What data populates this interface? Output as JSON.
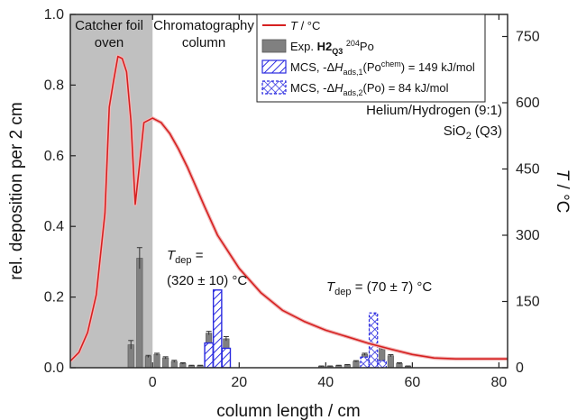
{
  "chart_data": {
    "type": "bar",
    "xlabel": "column length / cm",
    "ylabel_left": "rel. deposition per 2 cm",
    "ylabel_right_symbol": "T",
    "ylabel_right_unit": " / °C",
    "xlim": [
      -19,
      82
    ],
    "ylim": [
      0,
      1.0
    ],
    "ylim_right": [
      0,
      800
    ],
    "x_ticks": [
      0,
      20,
      40,
      60,
      80
    ],
    "y_ticks": [
      0.0,
      0.2,
      0.4,
      0.6,
      0.8,
      1.0
    ],
    "y_right_ticks": [
      0,
      150,
      300,
      450,
      600,
      750
    ],
    "regions": [
      {
        "label_line1": "Catcher foil",
        "label_line2": "oven",
        "x_start": -19,
        "x_end": 0,
        "color": "#c0c0c0"
      },
      {
        "label_line1": "Chromatography",
        "label_line2": "column"
      }
    ],
    "conditions_line1": "Helium/Hydrogen (9:1)",
    "conditions_line2_main": "SiO",
    "conditions_line2_sub": "2",
    "conditions_line2_rest": " (Q3)",
    "colors": {
      "temperature": "#d62020",
      "experiment": "#808080",
      "mcs": "#2a2ae0"
    },
    "legend": {
      "placement": "top-right",
      "entries": [
        {
          "symbol": "line",
          "parts": [
            {
              "t": "T",
              "style": "italic"
            },
            {
              "t": " / °C"
            }
          ]
        },
        {
          "symbol": "grey-bar",
          "parts": [
            {
              "t": "Exp. "
            },
            {
              "t": "H2",
              "style": "bold"
            },
            {
              "t": "Q3",
              "style": "bold-sub"
            },
            {
              "t": " "
            },
            {
              "t": "204",
              "style": "sup"
            },
            {
              "t": "Po"
            }
          ]
        },
        {
          "symbol": "hatch",
          "parts": [
            {
              "t": "MCS, -Δ"
            },
            {
              "t": "H",
              "style": "italic"
            },
            {
              "t": "ads,1",
              "style": "sub"
            },
            {
              "t": "(Po"
            },
            {
              "t": "chem",
              "style": "sup"
            },
            {
              "t": ") = 149 kJ/mol"
            }
          ]
        },
        {
          "symbol": "crosshatch",
          "parts": [
            {
              "t": "MCS, -Δ"
            },
            {
              "t": "H",
              "style": "italic"
            },
            {
              "t": "ads,2",
              "style": "sub"
            },
            {
              "t": "(Po) = 84 kJ/mol"
            }
          ]
        }
      ]
    },
    "annotations": [
      {
        "line1_main": "T",
        "line1_sub": "dep",
        "line1_rest": " =",
        "line2": "(320 ± 10) °C"
      },
      {
        "line1_main": "T",
        "line1_sub": "dep",
        "line1_rest": " = (70 ± 7) °C"
      }
    ],
    "series": [
      {
        "kind": "line",
        "x": [
          -19,
          -17,
          -15,
          -13,
          -11,
          -10,
          -9,
          -8,
          -7,
          -6,
          -5,
          -4,
          -3,
          -2,
          -1,
          0,
          2,
          4,
          6,
          8,
          10,
          12,
          15,
          20,
          25,
          30,
          35,
          40,
          45,
          50,
          55,
          60,
          65,
          70,
          75,
          82
        ],
        "y": [
          15,
          35,
          80,
          165,
          350,
          590,
          650,
          705,
          700,
          670,
          560,
          370,
          460,
          555,
          560,
          565,
          555,
          530,
          495,
          455,
          410,
          365,
          300,
          225,
          170,
          130,
          105,
          85,
          70,
          55,
          42,
          30,
          22,
          20,
          20,
          20
        ]
      },
      {
        "kind": "bar",
        "x": [
          -5,
          -3,
          -1,
          1,
          3,
          5,
          7,
          9,
          11,
          13,
          15,
          17,
          39,
          41,
          43,
          45,
          47,
          49,
          51,
          53,
          55,
          57,
          59
        ],
        "y": [
          0.065,
          0.31,
          0.032,
          0.038,
          0.028,
          0.018,
          0.012,
          0.006,
          0.006,
          0.098,
          0.075,
          0.082,
          0.004,
          0.004,
          0.006,
          0.008,
          0.018,
          0.038,
          0.065,
          0.056,
          0.034,
          0.012,
          0.004
        ],
        "err": [
          0.012,
          0.03,
          0.003,
          0.003,
          0.003,
          0.003,
          0.002,
          0.001,
          0.001,
          0.005,
          0.005,
          0.006,
          0.001,
          0.001,
          0.001,
          0.001,
          0.002,
          0.003,
          0.005,
          0.004,
          0.003,
          0.002,
          0.001
        ]
      },
      {
        "kind": "bar",
        "x": [
          13,
          15,
          17
        ],
        "y": [
          0.07,
          0.22,
          0.055
        ]
      },
      {
        "kind": "bar",
        "x": [
          49,
          51,
          53
        ],
        "y": [
          0.03,
          0.155,
          0.02
        ]
      }
    ]
  }
}
